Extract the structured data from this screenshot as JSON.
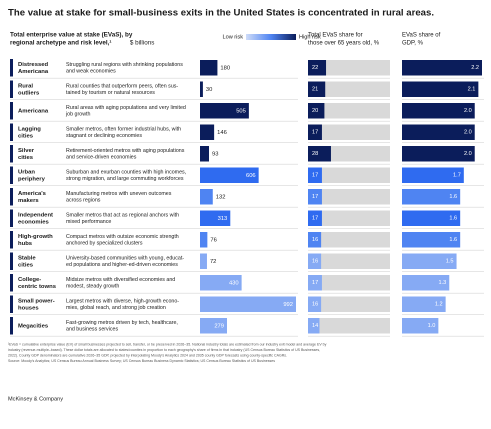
{
  "header": {
    "title": "The value at stake for small-business exits in the United States is concentrated in rural areas.",
    "evas_heading": [
      "Total enterprise value at stake (EVaS), by",
      "regional archetype and risk level,¹"
    ],
    "evas_unit": "$ billions",
    "legend_low": "Low risk",
    "legend_high": "High risk",
    "over65_heading": [
      "Total EVaS share for",
      "those over 65 years old, %"
    ],
    "gdp_heading": [
      "EVaS share of",
      "GDP, %"
    ]
  },
  "rows": [
    {
      "name": [
        "Distressed",
        "Americana"
      ],
      "description": [
        "Struggling rural regions with shrinking populations",
        "and weak economies"
      ],
      "color": "#0b1d5b",
      "evas": 180,
      "over65": 22,
      "gdp": 2.2
    },
    {
      "name": [
        "Rural",
        "outliers"
      ],
      "description": [
        "Rural counties that outperform peers, often sus-",
        "tained by tourism or natural resources"
      ],
      "color": "#0b1d5b",
      "evas": 30,
      "over65": 21,
      "gdp": 2.1
    },
    {
      "name": [
        "Americana"
      ],
      "description": [
        "Rural areas with aging populations and very limited",
        "job growth"
      ],
      "color": "#0b1d5b",
      "evas": 505,
      "over65": 20,
      "gdp": 2.0,
      "gdp_label": "2.0"
    },
    {
      "name": [
        "Lagging",
        "cities"
      ],
      "description": [
        "Smaller metros, often former industrial hubs, with",
        "stagnant or declining economies"
      ],
      "color": "#0b1d5b",
      "evas": 146,
      "over65": 17,
      "gdp": 2.0,
      "gdp_label": "2.0"
    },
    {
      "name": [
        "Silver",
        "cities"
      ],
      "description": [
        "Retirement-oriented metros with aging populations",
        "and service-driven economies"
      ],
      "color": "#0b1d5b",
      "evas": 93,
      "over65": 28,
      "gdp": 2.0,
      "gdp_label": "2.0"
    },
    {
      "name": [
        "Urban",
        "periphery"
      ],
      "description": [
        "Suburban and exurban counties with high incomes,",
        "strong migration, and large commuting workforces"
      ],
      "color": "#2f6bf0",
      "evas": 606,
      "over65": 17,
      "gdp": 1.7
    },
    {
      "name": [
        "America's",
        "makers"
      ],
      "description": [
        "Manufacturing metros with uneven outcomes",
        "across regions"
      ],
      "color": "#4f84f2",
      "evas": 132,
      "over65": 17,
      "gdp": 1.6
    },
    {
      "name": [
        "Independent",
        "economies"
      ],
      "description": [
        "Smaller metros that act as regional anchors with",
        "mixed performance"
      ],
      "color": "#2f6bf0",
      "evas": 313,
      "over65": 17,
      "gdp": 1.6
    },
    {
      "name": [
        "High-growth",
        "hubs"
      ],
      "description": [
        "Compact metros with outsize economic strength",
        "anchored by specialized clusters"
      ],
      "color": "#4f84f2",
      "evas": 76,
      "over65": 16,
      "gdp": 1.6
    },
    {
      "name": [
        "Stable",
        "cities"
      ],
      "description": [
        "University-based communities with young, educat-",
        "ed populations and higher-ed-driven economies"
      ],
      "color": "#86aaf4",
      "evas": 72,
      "over65": 16,
      "gdp": 1.5
    },
    {
      "name": [
        "College-",
        "centric towns"
      ],
      "description": [
        "Midsize metros with diversified economies and",
        "modest, steady growth"
      ],
      "color": "#86aaf4",
      "evas": 430,
      "over65": 17,
      "gdp": 1.3
    },
    {
      "name": [
        "Small power-",
        "houses"
      ],
      "description": [
        "Largest metros with diverse, high-growth econo-",
        "mies, global reach, and strong job creation"
      ],
      "color": "#86aaf4",
      "evas": 992,
      "over65": 16,
      "gdp": 1.2
    },
    {
      "name": [
        "Megacities"
      ],
      "description": [
        "Fast-growing metros driven by tech, healthcare,",
        "and business services"
      ],
      "color": "#86aaf4",
      "evas": 279,
      "over65": 14,
      "gdp": 1.0,
      "gdp_label": "1.0"
    }
  ],
  "footnotes": [
    "¹EVaS = cumulative enterprise value (EV) of small businesses projected to sell, transfer, or be preserved in 2026–35. National industry totals are estimated from our industry exit model and average EV by",
    "industry (revenue-multiple–based). These dollar totals are allocated to states/counties in proportion to each geography's share of firms in that industry (US Census Bureau Statistics of US Businesses,",
    "2022). County GDP denominators are cumulative 2026–35 GDP, projected by interpolating Moody's Analytics 2024 and 2035 county GDP forecasts using county-specific CAGRs.",
    "Source: Moody's Analytics; US Census Bureau Annual Business Survey; US Census Bureau Business Dynamic Statistics; US Census Bureau Statistics of US Businesses"
  ],
  "brand": "McKinsey & Company"
}
